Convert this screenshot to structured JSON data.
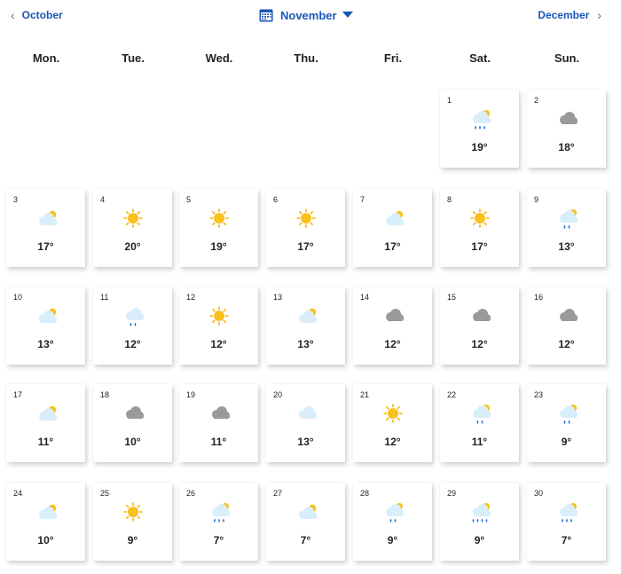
{
  "nav": {
    "prev_label": "October",
    "current_label": "November",
    "next_label": "December",
    "accent_color": "#1a56b8"
  },
  "weekdays": [
    "Mon.",
    "Tue.",
    "Wed.",
    "Thu.",
    "Fri.",
    "Sat.",
    "Sun."
  ],
  "icon_legend": {
    "partly-cloudy": "cloud with sun",
    "sunny": "sun",
    "cloudy": "grey cloud",
    "light-cloud": "light cloud",
    "rain-sun": "cloud with sun and rain drops",
    "rain": "cloud with rain drops"
  },
  "days": [
    {
      "day": "1",
      "icon": "rain-sun",
      "drops": 3,
      "temp": "19°"
    },
    {
      "day": "2",
      "icon": "cloudy",
      "drops": 0,
      "temp": "18°"
    },
    {
      "day": "3",
      "icon": "partly-cloudy",
      "drops": 0,
      "temp": "17°"
    },
    {
      "day": "4",
      "icon": "sunny",
      "drops": 0,
      "temp": "20°"
    },
    {
      "day": "5",
      "icon": "sunny",
      "drops": 0,
      "temp": "19°"
    },
    {
      "day": "6",
      "icon": "sunny",
      "drops": 0,
      "temp": "17°"
    },
    {
      "day": "7",
      "icon": "partly-cloudy",
      "drops": 0,
      "temp": "17°"
    },
    {
      "day": "8",
      "icon": "sunny",
      "drops": 0,
      "temp": "17°"
    },
    {
      "day": "9",
      "icon": "rain-sun",
      "drops": 2,
      "temp": "13°"
    },
    {
      "day": "10",
      "icon": "partly-cloudy",
      "drops": 0,
      "temp": "13°"
    },
    {
      "day": "11",
      "icon": "rain",
      "drops": 2,
      "temp": "12°"
    },
    {
      "day": "12",
      "icon": "sunny",
      "drops": 0,
      "temp": "12°"
    },
    {
      "day": "13",
      "icon": "partly-cloudy",
      "drops": 0,
      "temp": "13°"
    },
    {
      "day": "14",
      "icon": "cloudy",
      "drops": 0,
      "temp": "12°"
    },
    {
      "day": "15",
      "icon": "cloudy",
      "drops": 0,
      "temp": "12°"
    },
    {
      "day": "16",
      "icon": "cloudy",
      "drops": 0,
      "temp": "12°"
    },
    {
      "day": "17",
      "icon": "partly-cloudy",
      "drops": 0,
      "temp": "11°"
    },
    {
      "day": "18",
      "icon": "cloudy",
      "drops": 0,
      "temp": "10°"
    },
    {
      "day": "19",
      "icon": "cloudy",
      "drops": 0,
      "temp": "11°"
    },
    {
      "day": "20",
      "icon": "light-cloud",
      "drops": 0,
      "temp": "13°"
    },
    {
      "day": "21",
      "icon": "sunny",
      "drops": 0,
      "temp": "12°"
    },
    {
      "day": "22",
      "icon": "rain-sun",
      "drops": 2,
      "temp": "11°"
    },
    {
      "day": "23",
      "icon": "rain-sun",
      "drops": 2,
      "temp": "9°"
    },
    {
      "day": "24",
      "icon": "partly-cloudy",
      "drops": 0,
      "temp": "10°"
    },
    {
      "day": "25",
      "icon": "sunny",
      "drops": 0,
      "temp": "9°"
    },
    {
      "day": "26",
      "icon": "rain-sun",
      "drops": 3,
      "temp": "7°"
    },
    {
      "day": "27",
      "icon": "partly-cloudy",
      "drops": 0,
      "temp": "7°"
    },
    {
      "day": "28",
      "icon": "rain-sun",
      "drops": 2,
      "temp": "9°"
    },
    {
      "day": "29",
      "icon": "rain-sun",
      "drops": 4,
      "temp": "9°"
    },
    {
      "day": "30",
      "icon": "rain-sun",
      "drops": 3,
      "temp": "7°"
    }
  ]
}
